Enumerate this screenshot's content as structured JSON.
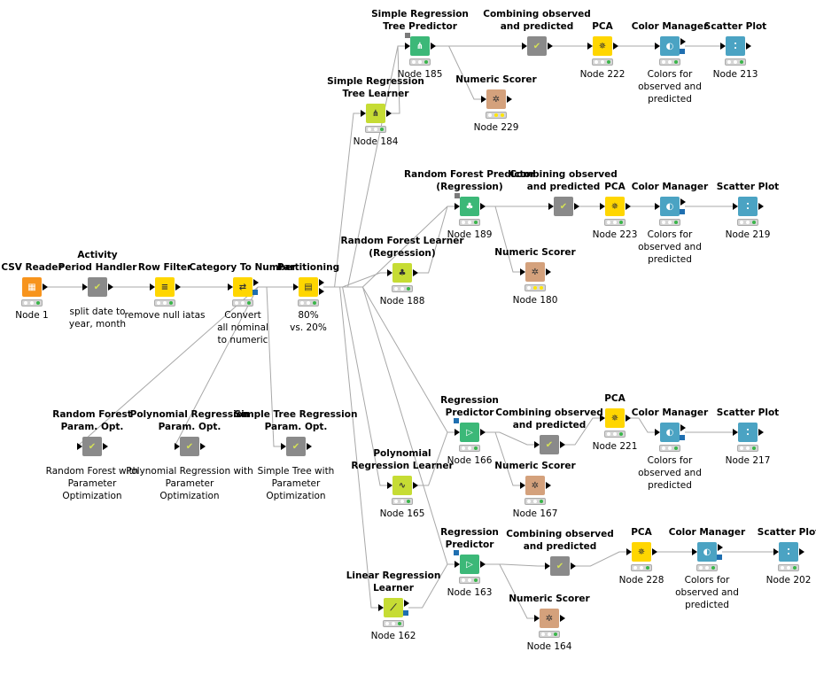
{
  "nodes": [
    {
      "id": "n1",
      "title": "CSV Reader",
      "label": "Node 1",
      "icon": "table-icon",
      "sym": "▦",
      "color": "c-orange",
      "status": "ok",
      "in": false,
      "out": 1
    },
    {
      "id": "n2",
      "title": "Activity\nPeriod Handler",
      "label": "split date to\nyear, month",
      "icon": "check-icon",
      "sym": "✔",
      "color": "c-gray",
      "status": "none",
      "in": true,
      "out": 1
    },
    {
      "id": "n3",
      "title": "Row Filter",
      "label": "remove null iatas",
      "icon": "filter-icon",
      "sym": "≡",
      "color": "c-yellow",
      "status": "ok",
      "in": true,
      "out": 1
    },
    {
      "id": "n4",
      "title": "Category To Number",
      "label": "Convert\nall nominal\nto numeric",
      "icon": "convert-icon",
      "sym": "⇄",
      "color": "c-yellow",
      "status": "ok",
      "in": true,
      "out": 1,
      "blueOut": true
    },
    {
      "id": "n5",
      "title": "Partitioning",
      "label": "80%\nvs. 20%",
      "icon": "partition-icon",
      "sym": "▤",
      "color": "c-yellow",
      "status": "ok",
      "in": true,
      "out": 2
    },
    {
      "id": "n6",
      "title": "Random Forest\nParam. Opt.",
      "label": "Random Forest with\nParameter\nOptimization",
      "icon": "check-icon",
      "sym": "✔",
      "color": "c-gray",
      "status": "none",
      "in": true,
      "out": 1
    },
    {
      "id": "n7",
      "title": "Polynomial Regression\nParam. Opt.",
      "label": "Polynomial Regression with\nParameter\nOptimization",
      "icon": "check-icon",
      "sym": "✔",
      "color": "c-gray",
      "status": "none",
      "in": true,
      "out": 1
    },
    {
      "id": "n8",
      "title": "Simple Tree Regression\nParam. Opt.",
      "label": "Simple Tree with\nParameter\nOptimization",
      "icon": "check-icon",
      "sym": "✔",
      "color": "c-gray",
      "status": "none",
      "in": true,
      "out": 1
    },
    {
      "id": "n184",
      "title": "Simple Regression\nTree Learner",
      "label": "Node 184",
      "icon": "tree-icon",
      "sym": "⋔",
      "color": "c-lime",
      "status": "ok",
      "in": true,
      "out": 1
    },
    {
      "id": "n185",
      "title": "Simple Regression\nTree Predictor",
      "label": "Node 185",
      "icon": "tree-predict-icon",
      "sym": "⋔",
      "color": "c-green",
      "status": "ok",
      "in": true,
      "out": 1,
      "sqIn": true
    },
    {
      "id": "n229",
      "title": "Numeric Scorer",
      "label": "Node 229",
      "icon": "scorer-icon",
      "sym": "✲",
      "color": "c-salmon",
      "status": "warn",
      "in": true,
      "out": 1
    },
    {
      "id": "nc1",
      "title": "Combining observed\nand predicted",
      "label": "",
      "icon": "check-icon",
      "sym": "✔",
      "color": "c-gray",
      "status": "none",
      "in": true,
      "out": 1
    },
    {
      "id": "n222",
      "title": "PCA",
      "label": "Node 222",
      "icon": "pca-icon",
      "sym": "✵",
      "color": "c-yellow",
      "status": "ok",
      "in": true,
      "out": 1
    },
    {
      "id": "ncm1",
      "title": "Color Manager",
      "label": "Colors for\nobserved and\npredicted",
      "icon": "color-drop-icon",
      "sym": "◐",
      "color": "c-teal",
      "status": "ok",
      "in": true,
      "out": 1,
      "blueOut": true
    },
    {
      "id": "n213",
      "title": "Scatter Plot",
      "label": "Node 213",
      "icon": "scatter-icon",
      "sym": "⁚",
      "color": "c-teal",
      "status": "ok",
      "in": true,
      "out": 1
    },
    {
      "id": "n188",
      "title": "Random Forest Learner\n(Regression)",
      "label": "Node 188",
      "icon": "forest-icon",
      "sym": "♣",
      "color": "c-lime",
      "status": "ok",
      "in": true,
      "out": 1
    },
    {
      "id": "n189",
      "title": "Random Forest Predictor\n(Regression)",
      "label": "Node 189",
      "icon": "forest-predict-icon",
      "sym": "♣",
      "color": "c-green",
      "status": "ok",
      "in": true,
      "out": 1,
      "sqIn": true
    },
    {
      "id": "n180",
      "title": "Numeric Scorer",
      "label": "Node 180",
      "icon": "scorer-icon",
      "sym": "✲",
      "color": "c-salmon",
      "status": "warn",
      "in": true,
      "out": 1
    },
    {
      "id": "nc2",
      "title": "Combining observed\nand predicted",
      "label": "",
      "icon": "check-icon",
      "sym": "✔",
      "color": "c-gray",
      "status": "none",
      "in": true,
      "out": 1
    },
    {
      "id": "n223",
      "title": "PCA",
      "label": "Node 223",
      "icon": "pca-icon",
      "sym": "✵",
      "color": "c-yellow",
      "status": "ok",
      "in": true,
      "out": 1
    },
    {
      "id": "ncm2",
      "title": "Color Manager",
      "label": "Colors for\nobserved and\npredicted",
      "icon": "color-drop-icon",
      "sym": "◐",
      "color": "c-teal",
      "status": "ok",
      "in": true,
      "out": 1,
      "blueOut": true
    },
    {
      "id": "n219",
      "title": "Scatter Plot",
      "label": "Node 219",
      "icon": "scatter-icon",
      "sym": "⁚",
      "color": "c-teal",
      "status": "ok",
      "in": true,
      "out": 1
    },
    {
      "id": "n165",
      "title": "Polynomial\nRegression Learner",
      "label": "Node 165",
      "icon": "poly-icon",
      "sym": "∿",
      "color": "c-lime",
      "status": "ok",
      "in": true,
      "out": 1
    },
    {
      "id": "n166",
      "title": "Regression\nPredictor",
      "label": "Node 166",
      "icon": "predictor-icon",
      "sym": "▷",
      "color": "c-green",
      "status": "ok",
      "in": true,
      "out": 1,
      "blueIn": true
    },
    {
      "id": "n167",
      "title": "Numeric Scorer",
      "label": "Node 167",
      "icon": "scorer-icon",
      "sym": "✲",
      "color": "c-salmon",
      "status": "ok",
      "in": true,
      "out": 1
    },
    {
      "id": "nc3",
      "title": "Combining observed\nand predicted",
      "label": "",
      "icon": "check-icon",
      "sym": "✔",
      "color": "c-gray",
      "status": "none",
      "in": true,
      "out": 1
    },
    {
      "id": "n221",
      "title": "PCA",
      "label": "Node 221",
      "icon": "pca-icon",
      "sym": "✵",
      "color": "c-yellow",
      "status": "ok",
      "in": true,
      "out": 1
    },
    {
      "id": "ncm3",
      "title": "Color Manager",
      "label": "Colors for\nobserved and\npredicted",
      "icon": "color-drop-icon",
      "sym": "◐",
      "color": "c-teal",
      "status": "ok",
      "in": true,
      "out": 1,
      "blueOut": true
    },
    {
      "id": "n217",
      "title": "Scatter Plot",
      "label": "Node 217",
      "icon": "scatter-icon",
      "sym": "⁚",
      "color": "c-teal",
      "status": "ok",
      "in": true,
      "out": 1
    },
    {
      "id": "n162",
      "title": "Linear Regression\nLearner",
      "label": "Node 162",
      "icon": "linreg-icon",
      "sym": "⟋",
      "color": "c-lime",
      "status": "ok",
      "in": true,
      "out": 1,
      "blueOut": true
    },
    {
      "id": "n163",
      "title": "Regression\nPredictor",
      "label": "Node 163",
      "icon": "predictor-icon",
      "sym": "▷",
      "color": "c-green",
      "status": "ok",
      "in": true,
      "out": 1,
      "blueIn": true
    },
    {
      "id": "n164",
      "title": "Numeric Scorer",
      "label": "Node 164",
      "icon": "scorer-icon",
      "sym": "✲",
      "color": "c-salmon",
      "status": "ok",
      "in": true,
      "out": 1
    },
    {
      "id": "nc4",
      "title": "Combining observed\nand predicted",
      "label": "",
      "icon": "check-icon",
      "sym": "✔",
      "color": "c-gray",
      "status": "none",
      "in": true,
      "out": 1
    },
    {
      "id": "n228",
      "title": "PCA",
      "label": "Node 228",
      "icon": "pca-icon",
      "sym": "✵",
      "color": "c-yellow",
      "status": "ok",
      "in": true,
      "out": 1
    },
    {
      "id": "ncm4",
      "title": "Color Manager",
      "label": "Colors for\nobserved and\npredicted",
      "icon": "color-drop-icon",
      "sym": "◐",
      "color": "c-teal",
      "status": "ok",
      "in": true,
      "out": 1,
      "blueOut": true
    },
    {
      "id": "n202",
      "title": "Scatter Plot",
      "label": "Node 202",
      "icon": "scatter-icon",
      "sym": "⁚",
      "color": "c-teal",
      "status": "ok",
      "in": true,
      "out": 1
    }
  ],
  "edges": [
    [
      "n1",
      "n2"
    ],
    [
      "n2",
      "n3"
    ],
    [
      "n3",
      "n4"
    ],
    [
      "n4",
      "n5"
    ],
    [
      "n5",
      "n184"
    ],
    [
      "n5",
      "n185"
    ],
    [
      "n5",
      "n188"
    ],
    [
      "n5",
      "n189"
    ],
    [
      "n5",
      "n165"
    ],
    [
      "n5",
      "n166"
    ],
    [
      "n5",
      "n162"
    ],
    [
      "n5",
      "n163"
    ],
    [
      "n184",
      "n185"
    ],
    [
      "n185",
      "nc1"
    ],
    [
      "n185",
      "n229"
    ],
    [
      "nc1",
      "n222"
    ],
    [
      "n222",
      "ncm1"
    ],
    [
      "ncm1",
      "n213"
    ],
    [
      "n188",
      "n189"
    ],
    [
      "n189",
      "nc2"
    ],
    [
      "n189",
      "n180"
    ],
    [
      "nc2",
      "n223"
    ],
    [
      "n223",
      "ncm2"
    ],
    [
      "ncm2",
      "n219"
    ],
    [
      "n165",
      "n166"
    ],
    [
      "n166",
      "nc3"
    ],
    [
      "n166",
      "n167"
    ],
    [
      "nc3",
      "n221"
    ],
    [
      "n221",
      "ncm3"
    ],
    [
      "ncm3",
      "n217"
    ],
    [
      "n162",
      "n163"
    ],
    [
      "n163",
      "nc4"
    ],
    [
      "n163",
      "n164"
    ],
    [
      "nc4",
      "n228"
    ],
    [
      "n228",
      "ncm4"
    ],
    [
      "ncm4",
      "n202"
    ],
    [
      "n4",
      "n6"
    ],
    [
      "n4",
      "n7"
    ],
    [
      "n4",
      "n8"
    ]
  ]
}
